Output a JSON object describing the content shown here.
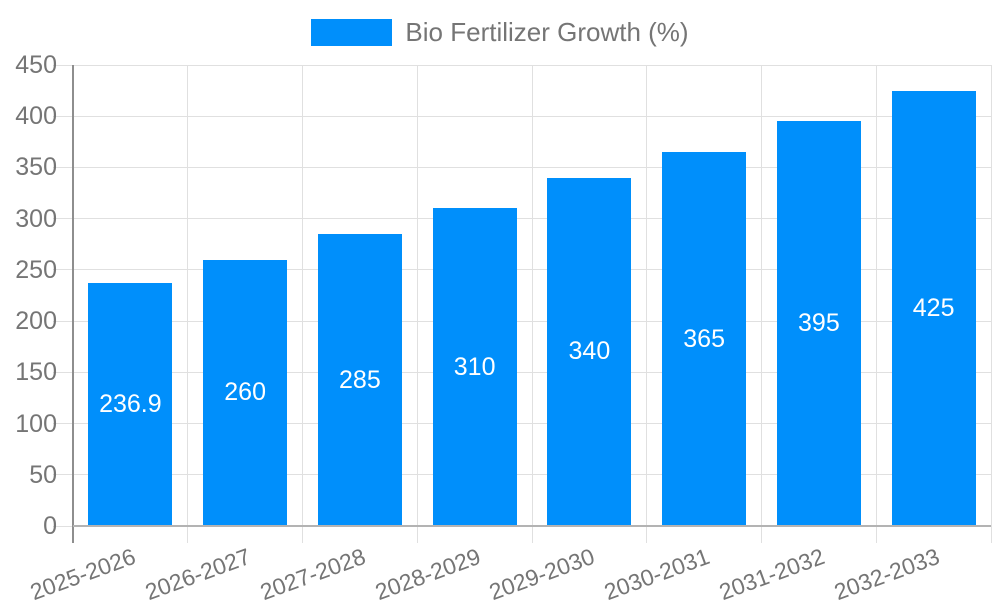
{
  "legend": {
    "label": "Bio Fertilizer Growth (%)",
    "position": "top-center"
  },
  "chart_data": {
    "type": "bar",
    "title": "",
    "xlabel": "",
    "ylabel": "",
    "categories": [
      "2025-2026",
      "2026-2027",
      "2027-2028",
      "2028-2029",
      "2029-2030",
      "2030-2031",
      "2031-2032",
      "2032-2033"
    ],
    "series": [
      {
        "name": "Bio Fertilizer Growth (%)",
        "values": [
          236.9,
          260,
          285,
          310,
          340,
          365,
          395,
          425
        ]
      }
    ],
    "value_labels": [
      "236.9",
      "260",
      "285",
      "310",
      "340",
      "365",
      "395",
      "425"
    ],
    "value_label_position": "center-of-bar",
    "ylim": [
      0,
      450
    ],
    "yticks": [
      0,
      50,
      100,
      150,
      200,
      250,
      300,
      350,
      400,
      450
    ],
    "ytick_labels": [
      "0",
      "50",
      "100",
      "150",
      "200",
      "250",
      "300",
      "350",
      "400",
      "450"
    ],
    "grid": true,
    "legend_position": "top-center",
    "x_label_rotation_deg": -20,
    "colors": {
      "bar": "#008FFB",
      "value_label": "#ffffff",
      "axis_text": "#757575",
      "gridline": "#e0e0e0",
      "y_axis_line": "#8e8e8e",
      "x_axis_line": "#b3b3b3",
      "background": "#ffffff"
    }
  }
}
